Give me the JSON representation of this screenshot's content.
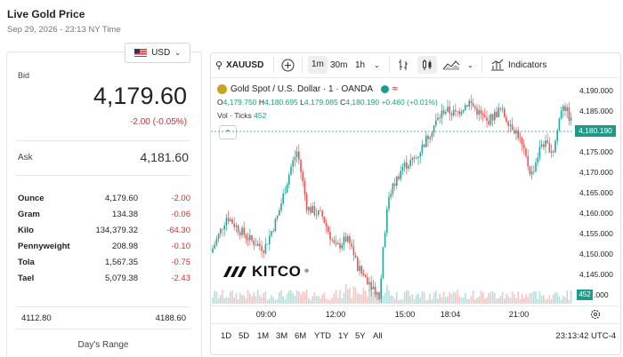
{
  "header": {
    "title": "Live Gold Price",
    "date": "Sep 29, 2026 - 23:13 NY Time"
  },
  "currency": {
    "label": "USD",
    "icon": "us-flag-icon"
  },
  "bid": {
    "label": "Bid",
    "value": "4,179.60",
    "change": "-2.00 (-0.05%)"
  },
  "ask": {
    "label": "Ask",
    "value": "4,181.60"
  },
  "units": [
    {
      "name": "Ounce",
      "value": "4,179.60",
      "change": "-2.00"
    },
    {
      "name": "Gram",
      "value": "134.38",
      "change": "-0.06"
    },
    {
      "name": "Kilo",
      "value": "134,379.32",
      "change": "-64.30"
    },
    {
      "name": "Pennyweight",
      "value": "208.98",
      "change": "-0.10"
    },
    {
      "name": "Tola",
      "value": "1,567.35",
      "change": "-0.75"
    },
    {
      "name": "Tael",
      "value": "5,079.38",
      "change": "-2.43"
    }
  ],
  "days_range": {
    "low": "4112.80",
    "high": "4188.60",
    "label": "Day's Range"
  },
  "toolbar": {
    "symbol": "XAUUSD",
    "intervals": [
      "1m",
      "30m",
      "1h"
    ],
    "selected_interval": "1m",
    "indicators_label": "Indicators"
  },
  "legend": {
    "title": "Gold Spot / U.S. Dollar · 1 · OANDA",
    "open_label": "O",
    "open": "4,179.750",
    "high_label": "H",
    "high": "4,180.695",
    "low_label": "L",
    "low": "4,179.085",
    "close_label": "C",
    "close": "4,180.190",
    "change": "+0.460 (+0.01%)",
    "volume_label": "Vol · Ticks",
    "volume": "452"
  },
  "y_axis": [
    "4,190.000",
    "4,185.000",
    "4,175.000",
    "4,170.000",
    "4,165.000",
    "4,160.000",
    "4,155.000",
    "4,150.000",
    "4,145.000",
    "4,140.000"
  ],
  "last_price_tag": "4,180.190",
  "last_volume_tag": "452",
  "y_axis_last": ".000",
  "x_axis": [
    "09:00",
    "12:00",
    "15:00",
    "18:04",
    "21:00"
  ],
  "ranges": [
    "1D",
    "5D",
    "1M",
    "3M",
    "6M",
    "YTD",
    "1Y",
    "5Y",
    "All"
  ],
  "clock": "23:13:42 UTC-4",
  "brand": "KITCO",
  "colors": {
    "up": "#26a69a",
    "down": "#ef5350",
    "accent": "#1e9a8a",
    "negative": "#d32f2f"
  }
}
